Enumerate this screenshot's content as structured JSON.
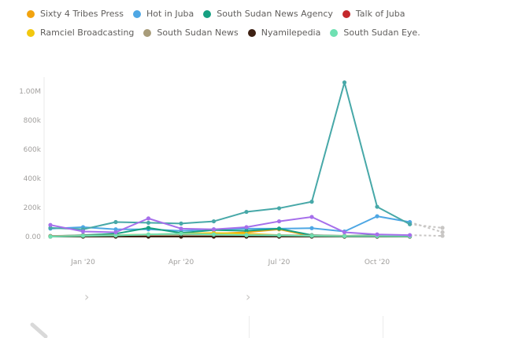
{
  "legend": {
    "row1": [
      {
        "label": "Sixty 4 Tribes Press",
        "color": "#F2A30F"
      },
      {
        "label": "Hot in Juba",
        "color": "#4EA7E4"
      },
      {
        "label": "South Sudan News Agency",
        "color": "#16A082"
      },
      {
        "label": "Talk of Juba",
        "color": "#C4282C"
      }
    ],
    "row2": [
      {
        "label": "Ramciel Broadcasting",
        "color": "#F2C80F"
      },
      {
        "label": "South Sudan News",
        "color": "#A89C7A"
      },
      {
        "label": "Nyamilepedia",
        "color": "#3D2113"
      },
      {
        "label": "South Sudan Eye.",
        "color": "#6FE0B2"
      }
    ]
  },
  "chart_data": {
    "type": "line",
    "x": [
      "2019-12",
      "2020-01",
      "2020-02",
      "2020-03",
      "2020-04",
      "2020-05",
      "2020-06",
      "2020-07",
      "2020-08",
      "2020-09",
      "2020-10",
      "2020-11",
      "2020-12"
    ],
    "x_tick_labels": [
      "Jan '20",
      "Apr '20",
      "Jul '20",
      "Oct '20"
    ],
    "x_tick_positions": [
      "2020-01",
      "2020-04",
      "2020-07",
      "2020-10"
    ],
    "y_tick_labels": [
      "0.00",
      "200k",
      "400k",
      "600k",
      "800k",
      "1.00M"
    ],
    "ylim": [
      0,
      1050000
    ],
    "grid": false,
    "legend_position": "top",
    "series": [
      {
        "name": "Sixty 4 Tribes Press",
        "color": "#F2A30F",
        "values": [
          2000,
          5000,
          8000,
          12000,
          15000,
          20000,
          30000,
          50000,
          3000,
          3000,
          3000,
          2000,
          null
        ]
      },
      {
        "name": "Hot in Juba",
        "color": "#4EA7E4",
        "values": [
          55000,
          65000,
          50000,
          50000,
          40000,
          50000,
          55000,
          55000,
          58000,
          35000,
          140000,
          100000,
          30000
        ],
        "dashed_from_index": 11
      },
      {
        "name": "South Sudan News Agency",
        "color": "#16A082",
        "values": [
          3000,
          10000,
          20000,
          60000,
          25000,
          45000,
          40000,
          55000,
          10000,
          5000,
          10000,
          5000,
          null
        ]
      },
      {
        "name": "Talk of Juba",
        "color": "#C4282C",
        "values": [
          1000,
          2000,
          2000,
          2000,
          2000,
          2000,
          2000,
          2000,
          2000,
          2000,
          2000,
          2000,
          null
        ]
      },
      {
        "name": "Ramciel Broadcasting",
        "color": "#F2C80F",
        "values": [
          2000,
          5000,
          10000,
          15000,
          20000,
          25000,
          20000,
          10000,
          5000,
          5000,
          5000,
          3000,
          null
        ]
      },
      {
        "name": "South Sudan News",
        "color": "#A89C7A",
        "values": [
          5000,
          8000,
          10000,
          12000,
          10000,
          10000,
          12000,
          10000,
          8000,
          6000,
          6000,
          5000,
          null
        ]
      },
      {
        "name": "Nyamilepedia",
        "color": "#3D2113",
        "values": [
          0,
          0,
          0,
          0,
          0,
          0,
          0,
          0,
          0,
          0,
          0,
          0,
          null
        ]
      },
      {
        "name": "South Sudan Eye.",
        "color": "#6FE0B2",
        "values": [
          0,
          5000,
          8000,
          15000,
          20000,
          15000,
          10000,
          8000,
          5000,
          3000,
          3000,
          2000,
          null
        ]
      },
      {
        "name": "",
        "color": "#47A8A8",
        "values": [
          60000,
          50000,
          100000,
          95000,
          90000,
          105000,
          170000,
          195000,
          240000,
          1060000,
          205000,
          85000,
          60000
        ],
        "dashed_from_index": 11
      },
      {
        "name": "",
        "color": "#A66FEB",
        "values": [
          80000,
          35000,
          30000,
          125000,
          55000,
          50000,
          65000,
          105000,
          135000,
          30000,
          15000,
          10000,
          5000
        ],
        "dashed_from_index": 11
      }
    ]
  }
}
